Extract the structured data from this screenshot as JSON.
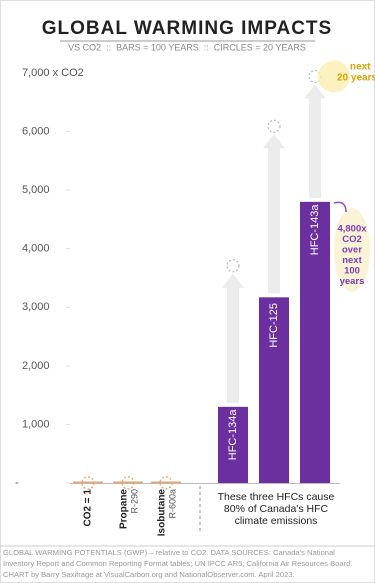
{
  "chart_data": {
    "type": "bar",
    "title": "GLOBAL WARMING IMPACTS",
    "subtitle": "VS CO2  ::  BARS = 100 YEARS  ::  CIRCLES = 20 YEARS",
    "categories": [
      "CO2 = 1",
      "Propane",
      "Isobutane",
      "HFC-134a",
      "HFC-125",
      "HFC-143a"
    ],
    "category_codes": [
      null,
      "R-290",
      "R-600a",
      null,
      null,
      null
    ],
    "bars_100yr": [
      1,
      3,
      3,
      1300,
      3170,
      4800
    ],
    "circles_20yr": [
      1,
      3,
      3,
      3710,
      6090,
      6940
    ],
    "bar_colors": [
      "#e8a466",
      "#e8a466",
      "#e8a466",
      "#6b2fa0",
      "#6b2fa0",
      "#6b2fa0"
    ],
    "circle_colors": [
      "#e8a466",
      "#e8a466",
      "#e8a466",
      "#bbbbbb",
      "#bbbbbb",
      "#bbbbbb"
    ],
    "ylim": [
      0,
      7000
    ],
    "yticks": [
      {
        "value": 0,
        "label": "-"
      },
      {
        "value": 1000,
        "label": "1,000"
      },
      {
        "value": 2000,
        "label": "2,000"
      },
      {
        "value": 3000,
        "label": "3,000"
      },
      {
        "value": 4000,
        "label": "4,000"
      },
      {
        "value": 5000,
        "label": "5,000"
      },
      {
        "value": 6000,
        "label": "6,000"
      },
      {
        "value": 7000,
        "label": "7,000 x CO2"
      }
    ],
    "annotations": {
      "hfc_note": [
        "These three HFCs cause",
        "80% of Canada's HFC",
        "climate emissions"
      ],
      "bar_note": [
        "4,800x",
        "CO2",
        "over",
        "next",
        "100",
        "years"
      ],
      "circle_note": [
        "next",
        "20 years"
      ]
    },
    "footer": [
      "GLOBAL WARMING POTENTIALS (GWP)  – relative to CO2. DATA SOURCES: Canada's National",
      "Inventory Report and Common Reporting Format tables; UN IPCC AR5; California Air Resources Board.",
      "CHART by Barry Saxifrage at VisualCarbon.org and NationalObserver.com. April 2023."
    ]
  }
}
